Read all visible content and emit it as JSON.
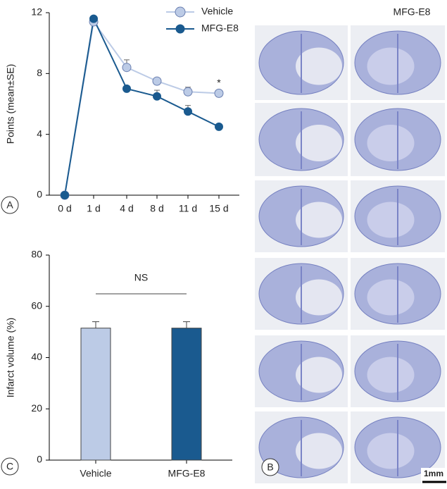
{
  "chart_data": [
    {
      "type": "line",
      "panel_label": "A",
      "ylabel": "Points (mean±SE)",
      "categories": [
        "0 d",
        "1 d",
        "4 d",
        "8 d",
        "11 d",
        "15 d"
      ],
      "series": [
        {
          "name": "Vehicle",
          "color": "#bccbe6",
          "values": [
            0,
            11.4,
            8.4,
            7.5,
            6.8,
            6.7
          ],
          "errors": [
            0,
            0,
            0.5,
            0.2,
            0.3,
            0.2
          ]
        },
        {
          "name": "MFG-E8",
          "color": "#1a5a8f",
          "values": [
            0,
            11.6,
            7.0,
            6.5,
            5.5,
            4.5
          ],
          "errors": [
            0,
            0,
            0,
            0.4,
            0.4,
            0
          ]
        }
      ],
      "annotation": "*",
      "ylim": [
        0,
        12
      ],
      "yticks": [
        0,
        4,
        8,
        12
      ],
      "legend": "top-right"
    },
    {
      "type": "bar",
      "panel_label": "C",
      "ylabel": "Infarct volume (%)",
      "categories": [
        "Vehicle",
        "MFG-E8"
      ],
      "values": [
        51.5,
        51.5
      ],
      "errors": [
        2.5,
        2.5
      ],
      "colors": [
        "#bccbe6",
        "#1a5a8f"
      ],
      "annotation": "NS",
      "ylim": [
        0,
        80
      ],
      "yticks": [
        0,
        20,
        40,
        60,
        80
      ]
    }
  ],
  "panel_b": {
    "panel_label": "B",
    "column_title": "MFG-E8",
    "scale_bar": "1mm"
  }
}
